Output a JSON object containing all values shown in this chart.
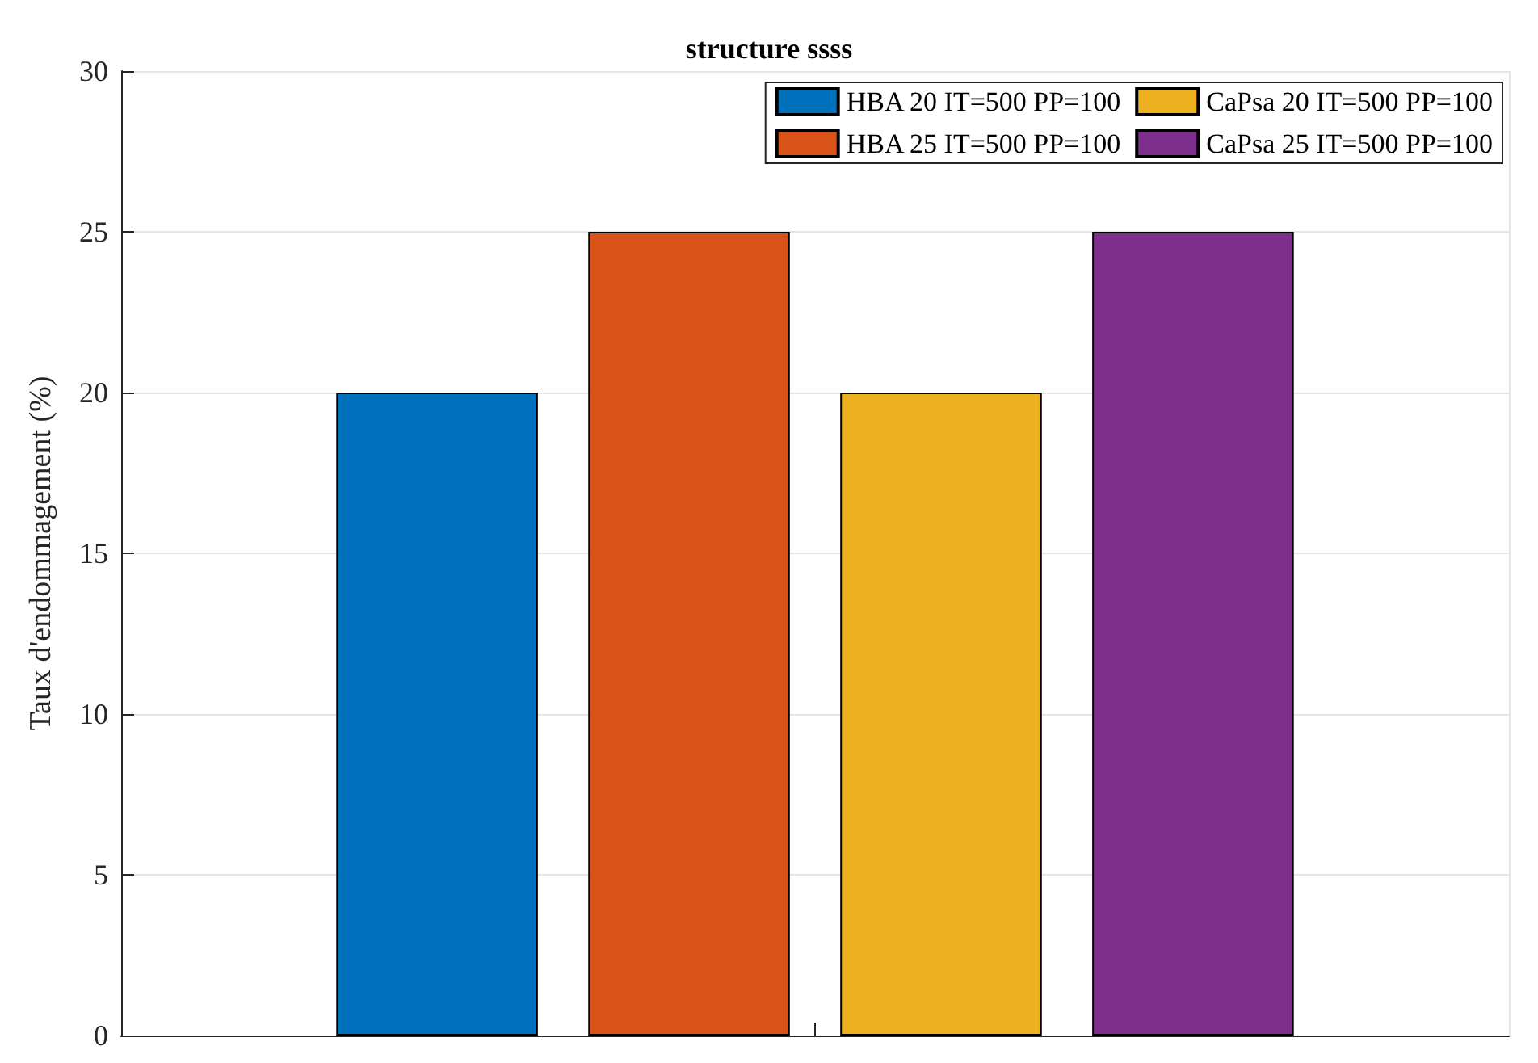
{
  "chart_data": {
    "type": "bar",
    "title": "structure ssss",
    "ylabel": "Taux d'endommagement (%)",
    "categories": [
      null
    ],
    "series": [
      {
        "name": "HBA 20 IT=500 PP=100",
        "color": "#0072bd",
        "values": [
          20
        ]
      },
      {
        "name": "HBA 25 IT=500 PP=100",
        "color": "#d95319",
        "values": [
          25
        ]
      },
      {
        "name": "CaPsa 20 IT=500 PP=100",
        "color": "#edb120",
        "values": [
          20
        ]
      },
      {
        "name": "CaPsa 25 IT=500 PP=100",
        "color": "#7e2f8e",
        "values": [
          25
        ]
      }
    ],
    "ylim": [
      0,
      30
    ],
    "yticks": [
      0,
      5,
      10,
      15,
      20,
      25,
      30
    ],
    "grid": true,
    "legend": "top right",
    "tick_labels": "y"
  }
}
